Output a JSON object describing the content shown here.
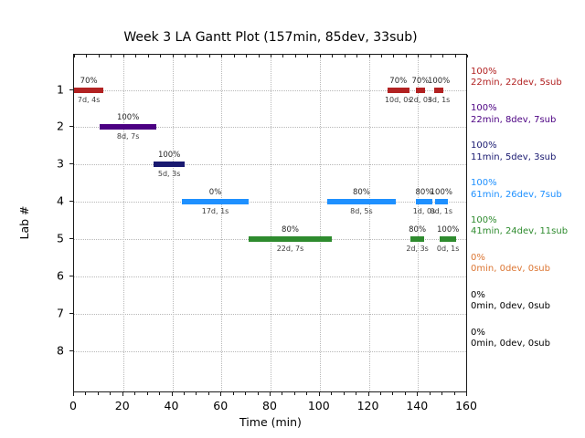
{
  "chart_data": {
    "type": "gantt",
    "title": "Week 3 LA Gantt Plot (157min, 85dev, 33sub)",
    "xlabel": "Time (min)",
    "ylabel": "Lab #",
    "xlim": [
      0,
      160
    ],
    "x_ticks": [
      0,
      20,
      40,
      60,
      80,
      100,
      120,
      140,
      160
    ],
    "x_minor_step": 5,
    "grid": "dotted",
    "legend_position": "right-of-plot",
    "labs": [
      {
        "lab": "1",
        "color": "#B22222",
        "summary": {
          "percent": "100%",
          "stats": "22min, 22dev, 5sub"
        },
        "bars": [
          {
            "start": 0,
            "end": 12,
            "percent": "70%",
            "detail": "7d, 4s"
          },
          {
            "start": 127.5,
            "end": 136.5,
            "percent": "70%",
            "detail": "10d, 0s"
          },
          {
            "start": 139,
            "end": 143,
            "percent": "70%",
            "detail": "2d, 0s"
          },
          {
            "start": 146.5,
            "end": 150.5,
            "percent": "100%",
            "detail": "3d, 1s"
          }
        ]
      },
      {
        "lab": "2",
        "color": "#4B0082",
        "summary": {
          "percent": "100%",
          "stats": "22min, 8dev, 7sub"
        },
        "bars": [
          {
            "start": 10.5,
            "end": 33.5,
            "percent": "100%",
            "detail": "8d, 7s"
          }
        ]
      },
      {
        "lab": "3",
        "color": "#191970",
        "summary": {
          "percent": "100%",
          "stats": "11min, 5dev, 3sub"
        },
        "bars": [
          {
            "start": 32.5,
            "end": 45,
            "percent": "100%",
            "detail": "5d, 3s"
          }
        ]
      },
      {
        "lab": "4",
        "color": "#1E90FF",
        "summary": {
          "percent": "100%",
          "stats": "61min, 26dev, 7sub"
        },
        "bars": [
          {
            "start": 44,
            "end": 71,
            "percent": "0%",
            "detail": "17d, 1s"
          },
          {
            "start": 103,
            "end": 131,
            "percent": "80%",
            "detail": "8d, 5s"
          },
          {
            "start": 139,
            "end": 146,
            "percent": "80%",
            "detail": "1d, 0s"
          },
          {
            "start": 147,
            "end": 152,
            "percent": "100%",
            "detail": "0d, 1s"
          }
        ]
      },
      {
        "lab": "5",
        "color": "#2E8B2E",
        "summary": {
          "percent": "100%",
          "stats": "41min, 24dev, 11sub"
        },
        "bars": [
          {
            "start": 71,
            "end": 105,
            "percent": "80%",
            "detail": "22d, 7s"
          },
          {
            "start": 137,
            "end": 142.5,
            "percent": "80%",
            "detail": "2d, 3s"
          },
          {
            "start": 149,
            "end": 155.5,
            "percent": "100%",
            "detail": "0d, 1s"
          }
        ]
      },
      {
        "lab": "6",
        "color": "#DC7633",
        "summary": {
          "percent": "0%",
          "stats": "0min, 0dev, 0sub"
        },
        "bars": []
      },
      {
        "lab": "7",
        "color": "#000000",
        "summary": {
          "percent": "0%",
          "stats": "0min, 0dev, 0sub"
        },
        "bars": []
      },
      {
        "lab": "8",
        "color": "#000000",
        "summary": {
          "percent": "0%",
          "stats": "0min, 0dev, 0sub"
        },
        "bars": []
      }
    ]
  }
}
